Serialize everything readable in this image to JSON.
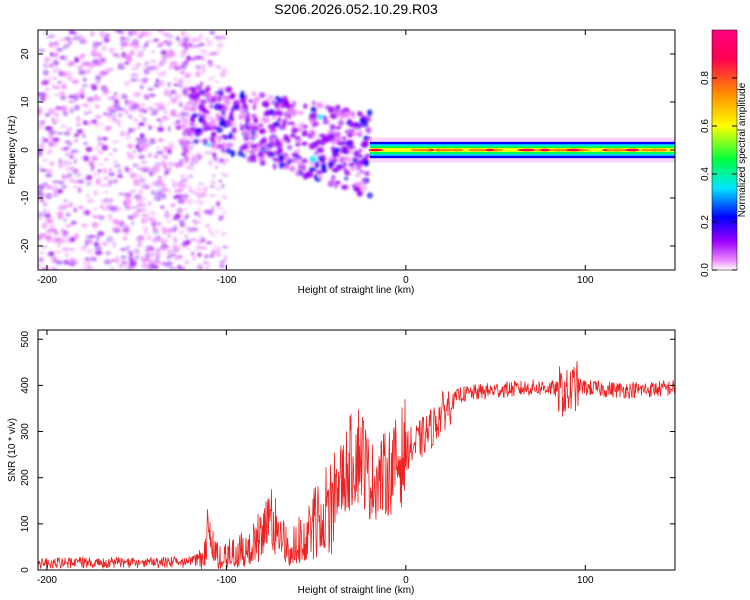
{
  "title": "S206.2026.052.10.29.R03",
  "chart_data": [
    {
      "type": "heatmap",
      "title": "S206.2026.052.10.29.R03",
      "xlabel": "Height of straight line (km)",
      "ylabel": "Frequency (Hz)",
      "xlim": [
        -205,
        150
      ],
      "ylim": [
        -25,
        25
      ],
      "x_ticks": [
        -200,
        -100,
        0,
        100
      ],
      "y_ticks": [
        -20,
        -10,
        0,
        10,
        20
      ],
      "colorbar": {
        "label": "Normalized spectral amplitude",
        "range": [
          0,
          1
        ],
        "ticks": [
          0.0,
          0.2,
          0.4,
          0.6,
          0.8
        ],
        "colors": [
          "#ffffff",
          "#ee88ff",
          "#9900ff",
          "#0000ff",
          "#00e5ff",
          "#00ff40",
          "#ffff00",
          "#ff8800",
          "#ff0050"
        ]
      },
      "regions": [
        {
          "x": [
            -205,
            -100
          ],
          "freq": [
            -25,
            25
          ],
          "amplitude": 0.08,
          "note": "scattered noise"
        },
        {
          "x": [
            -120,
            -20
          ],
          "freq": [
            -14,
            13
          ],
          "amplitude": 0.25,
          "note": "descending band"
        },
        {
          "x": [
            -20,
            150
          ],
          "freq": [
            -1.5,
            1.5
          ],
          "amplitude": 0.75,
          "note": "tone near 0 Hz"
        }
      ]
    },
    {
      "type": "line",
      "xlabel": "Height of straight line (km)",
      "ylabel": "SNR (10 * v/v)",
      "xlim": [
        -205,
        150
      ],
      "ylim": [
        0,
        520
      ],
      "x_ticks": [
        -200,
        -100,
        0,
        100
      ],
      "y_ticks": [
        0,
        100,
        200,
        300,
        400,
        500
      ],
      "series_color": "#ee2222",
      "series": [
        {
          "name": "SNR",
          "x": [
            -205,
            -180,
            -150,
            -120,
            -112,
            -110,
            -105,
            -100,
            -90,
            -80,
            -75,
            -65,
            -55,
            -45,
            -35,
            -30,
            -25,
            -20,
            -15,
            -10,
            -5,
            0,
            5,
            10,
            15,
            20,
            25,
            30,
            40,
            50,
            60,
            70,
            80,
            85,
            90,
            95,
            100,
            110,
            120,
            130,
            140,
            150
          ],
          "y": [
            18,
            20,
            20,
            22,
            35,
            100,
            35,
            30,
            45,
            85,
            120,
            40,
            90,
            150,
            200,
            240,
            260,
            190,
            200,
            210,
            230,
            260,
            270,
            290,
            310,
            340,
            360,
            380,
            385,
            390,
            392,
            395,
            395,
            390,
            380,
            400,
            395,
            392,
            390,
            390,
            392,
            395
          ]
        }
      ]
    }
  ]
}
